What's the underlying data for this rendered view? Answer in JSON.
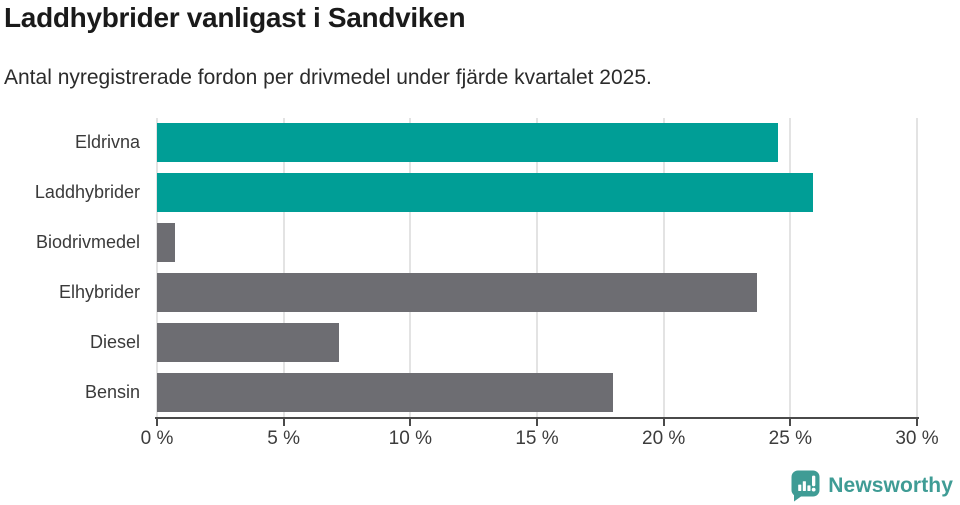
{
  "chart_data": {
    "type": "bar",
    "orientation": "horizontal",
    "title": "Laddhybrider vanligast i Sandviken",
    "subtitle": "Antal nyregistrerade fordon per drivmedel under fjärde kvartalet 2025.",
    "categories": [
      "Eldrivna",
      "Laddhybrider",
      "Biodrivmedel",
      "Elhybrider",
      "Diesel",
      "Bensin"
    ],
    "values": [
      24.5,
      25.9,
      0.7,
      23.7,
      7.2,
      18.0
    ],
    "unit": "%",
    "bar_colors": [
      "#009E96",
      "#009E96",
      "#6D6D72",
      "#6D6D72",
      "#6D6D72",
      "#6D6D72"
    ],
    "highlight_color": "#009E96",
    "neutral_color": "#6D6D72",
    "xlim": [
      0,
      30
    ],
    "x_ticks": [
      0,
      5,
      10,
      15,
      20,
      25,
      30
    ],
    "x_tick_labels": [
      "0 %",
      "5 %",
      "10 %",
      "15 %",
      "20 %",
      "25 %",
      "30 %"
    ],
    "grid": "vertical-light",
    "gridline_color": "#e3e3e3",
    "axis_color": "#4a4a4a",
    "legend": "none"
  },
  "footer": {
    "brand": "Newsworthy",
    "brand_color": "#3F9C95"
  }
}
